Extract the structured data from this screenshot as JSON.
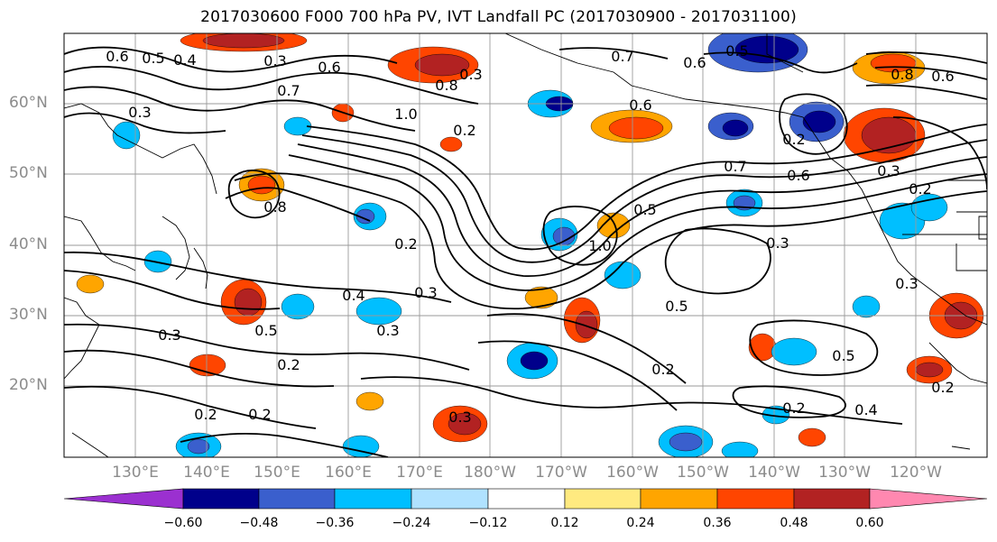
{
  "title": "2017030600 F000 700 hPa PV, IVT Landfall PC (2017030900 - 2017031100)",
  "lat_labels": [
    "60°N",
    "50°N",
    "40°N",
    "30°N",
    "20°N"
  ],
  "lon_labels": [
    "130°E",
    "140°E",
    "150°E",
    "160°E",
    "170°E",
    "180°W",
    "170°W",
    "160°W",
    "150°W",
    "140°W",
    "130°W",
    "120°W"
  ],
  "colorbar": {
    "colors": [
      "#9b30d0",
      "#00008b",
      "#3a5fcd",
      "#00bfff",
      "#b0e2ff",
      "#ffffff",
      "#ffea80",
      "#ffa500",
      "#ff4500",
      "#b22222",
      "#ff88b0"
    ],
    "tick_labels": [
      "−0.60",
      "−0.48",
      "−0.36",
      "−0.24",
      "−0.12",
      "0.12",
      "0.24",
      "0.36",
      "0.48",
      "0.60"
    ]
  },
  "contour_labels": [
    "0.6",
    "0.5",
    "0.4",
    "0.3",
    "0.6",
    "0.7",
    "0.3",
    "0.8",
    "1.0",
    "0.3",
    "0.6",
    "0.5",
    "0.7",
    "0.6",
    "0.8",
    "0.6",
    "0.3",
    "0.8",
    "0.2",
    "0.5",
    "1.0",
    "0.7",
    "0.6",
    "0.3",
    "0.4",
    "0.3",
    "0.2",
    "0.5",
    "0.3",
    "0.3",
    "0.2",
    "0.2",
    "0.5",
    "0.3",
    "0.2",
    "0.2",
    "0.5",
    "0.2",
    "0.4",
    "0.2",
    "0.3",
    "0.2",
    "0.2"
  ]
}
